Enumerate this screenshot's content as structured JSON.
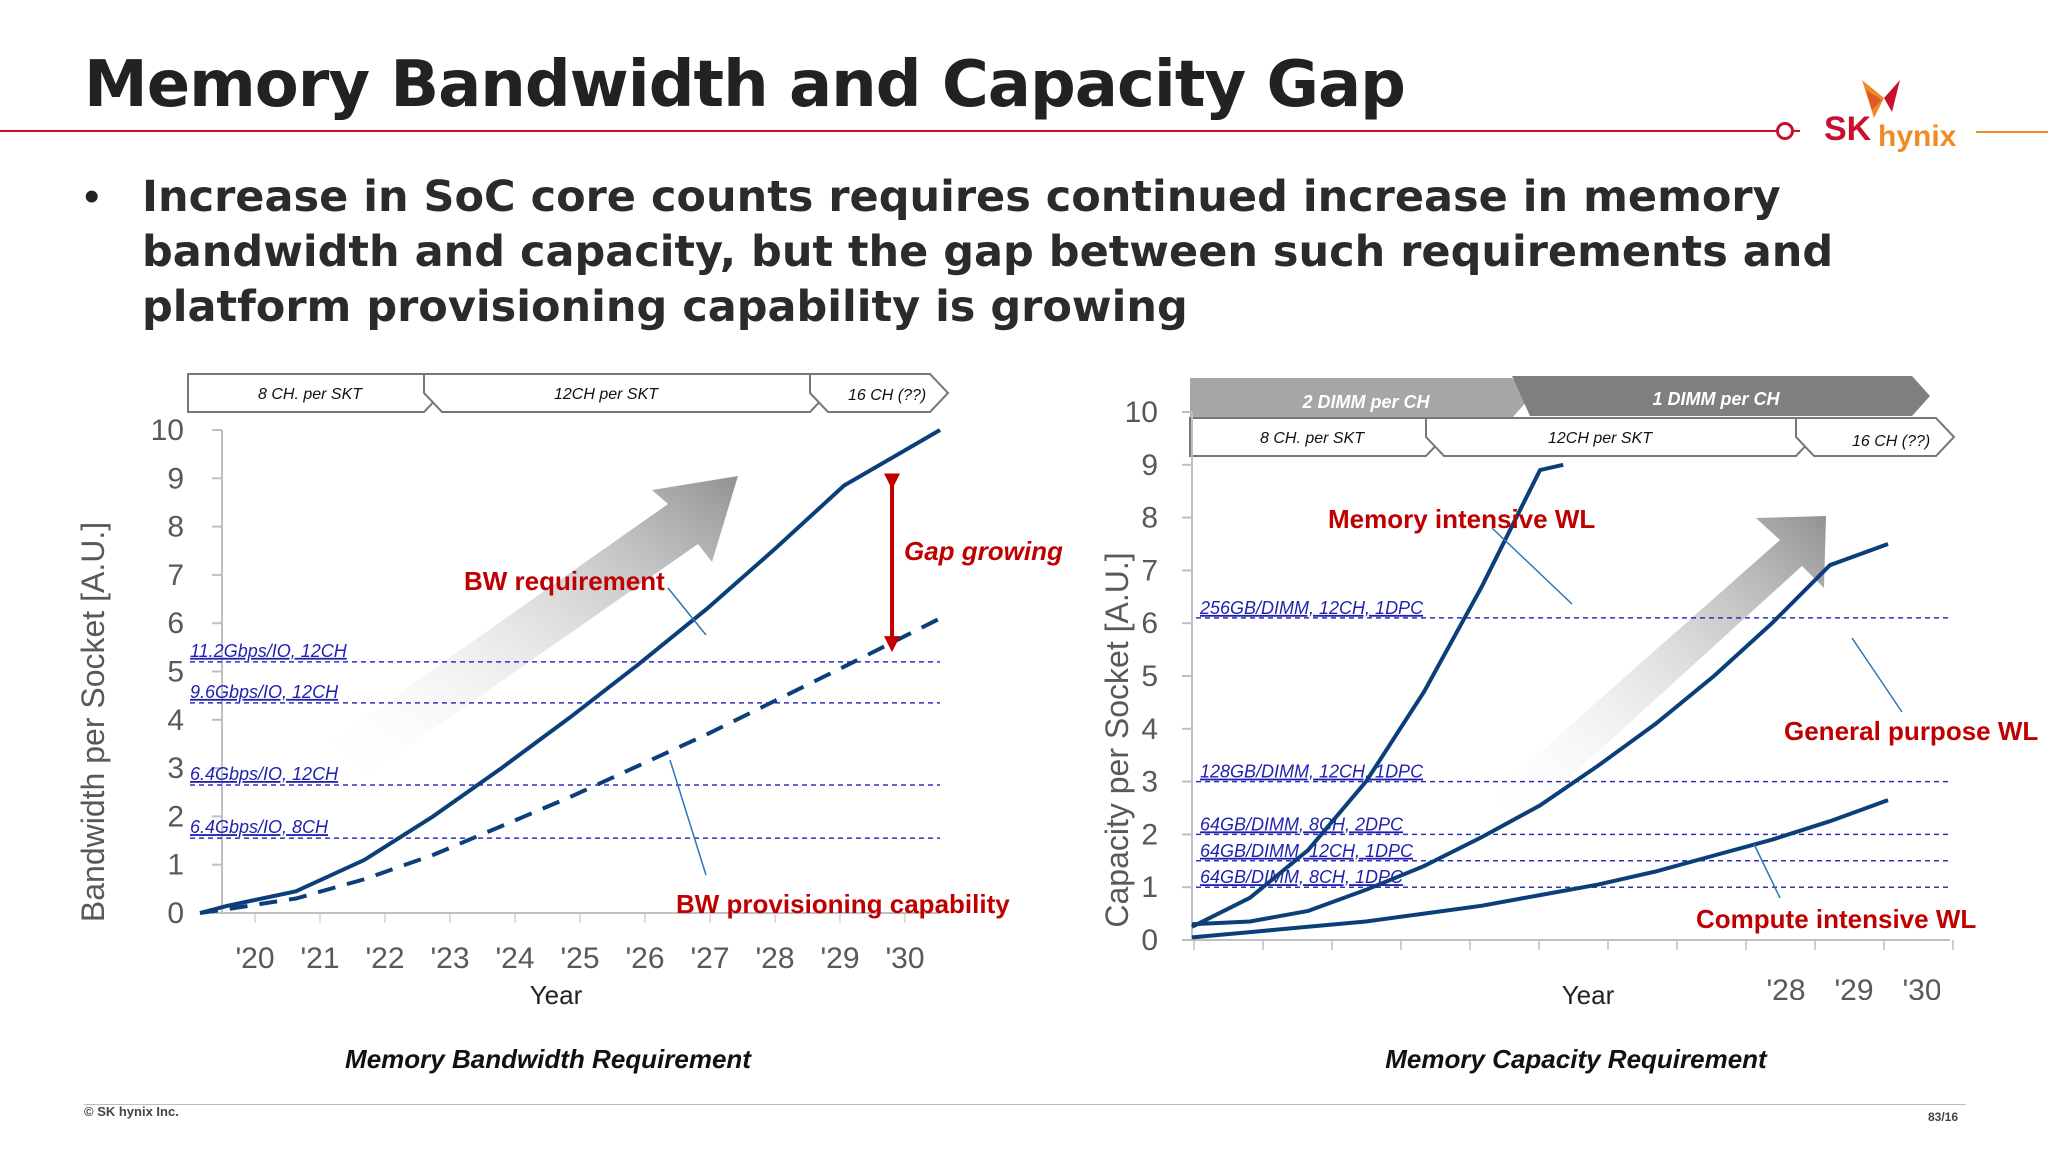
{
  "slide": {
    "title": "Memory Bandwidth and Capacity Gap",
    "bullet": "•",
    "bullet_text": "Increase in SoC core counts requires continued increase in memory bandwidth and capacity, but the gap between such requirements and platform provisioning capability is growing",
    "logo_sk": "SK",
    "logo_hynix": "hynix",
    "copyright": "© SK hynix Inc.",
    "page": "83/16"
  },
  "chart_data": [
    {
      "type": "line",
      "title": "Memory Bandwidth Requirement",
      "xlabel": "Year",
      "ylabel": "Bandwidth per Socket [A.U.]",
      "ylim": [
        0,
        10
      ],
      "ytick_labels": [
        "0",
        "1",
        "2",
        "3",
        "4",
        "5",
        "6",
        "7",
        "8",
        "9",
        "10"
      ],
      "xtick_labels": [
        "'20",
        "'21",
        "'22",
        "'23",
        "'24",
        "'25",
        "'26",
        "'27",
        "'28",
        "'29",
        "'30"
      ],
      "channel_bands": [
        {
          "label": "8 CH. per SKT"
        },
        {
          "label": "12CH per SKT"
        },
        {
          "label": "16 CH (??)"
        }
      ],
      "series": [
        {
          "name": "BW requirement",
          "style": "solid",
          "color": "#0b3f7a",
          "x": [
            2019.6,
            2020,
            2021,
            2022,
            2023,
            2024,
            2025,
            2026,
            2027,
            2028,
            2029,
            2030.4
          ],
          "y": [
            0,
            0.15,
            0.45,
            1.1,
            2.0,
            3.0,
            4.05,
            5.15,
            6.3,
            7.55,
            8.85,
            10.0
          ]
        },
        {
          "name": "BW provisioning capability",
          "style": "dashed",
          "color": "#0b3f7a",
          "x": [
            2019.6,
            2020,
            2021,
            2022,
            2023,
            2024,
            2025,
            2026,
            2027,
            2028,
            2029,
            2030.4
          ],
          "y": [
            0,
            0.08,
            0.3,
            0.7,
            1.2,
            1.8,
            2.4,
            3.05,
            3.7,
            4.4,
            5.1,
            6.1
          ]
        }
      ],
      "reference_lines": [
        {
          "label": "11.2Gbps/IO, 12CH",
          "y": 5.2
        },
        {
          "label": "9.6Gbps/IO, 12CH",
          "y": 4.35
        },
        {
          "label": "6.4Gbps/IO, 12CH",
          "y": 2.65
        },
        {
          "label": "6.4Gbps/IO, 8CH",
          "y": 1.55
        }
      ],
      "annotations": [
        {
          "label": "BW requirement",
          "color": "#c00000"
        },
        {
          "label": "BW provisioning capability",
          "color": "#c00000"
        },
        {
          "label": "Gap growing",
          "color": "#c00000"
        }
      ],
      "gap_arrow": {
        "x": 2029.7,
        "y_from": 9.1,
        "y_to": 5.4,
        "color": "#c00000"
      }
    },
    {
      "type": "line",
      "title": "Memory Capacity Requirement",
      "xlabel": "Year",
      "ylabel": "Capacity per Socket [A.U.]",
      "ylim": [
        0,
        10
      ],
      "ytick_labels": [
        "0",
        "1",
        "2",
        "3",
        "4",
        "5",
        "6",
        "7",
        "8",
        "9",
        "10"
      ],
      "xtick_labels_partial": [
        "'28",
        "'29",
        "'30"
      ],
      "dimm_bands": [
        {
          "label": "2 DIMM per CH",
          "color": "#a6a6a6"
        },
        {
          "label": "1 DIMM per CH",
          "color": "#7f7f7f"
        }
      ],
      "channel_bands": [
        {
          "label": "8 CH. per SKT"
        },
        {
          "label": "12CH per SKT"
        },
        {
          "label": "16 CH (??)"
        }
      ],
      "series": [
        {
          "name": "Memory intensive WL",
          "color": "#0b3f7a",
          "x": [
            0,
            1,
            2,
            3,
            4,
            5,
            6,
            6.4
          ],
          "y": [
            0.25,
            0.8,
            1.7,
            3.0,
            4.7,
            6.7,
            8.9,
            9.0
          ]
        },
        {
          "name": "General purpose WL",
          "color": "#0b3f7a",
          "x": [
            0,
            1,
            2,
            3,
            4,
            5,
            6,
            7,
            8,
            9,
            10,
            11,
            12
          ],
          "y": [
            0.3,
            0.35,
            0.55,
            0.95,
            1.4,
            1.95,
            2.55,
            3.3,
            4.1,
            5.0,
            6.0,
            7.1,
            7.5
          ]
        },
        {
          "name": "Compute intensive WL",
          "color": "#0b3f7a",
          "x": [
            0,
            1,
            2,
            3,
            4,
            5,
            6,
            7,
            8,
            9,
            10,
            11,
            12
          ],
          "y": [
            0.05,
            0.15,
            0.25,
            0.35,
            0.5,
            0.65,
            0.85,
            1.05,
            1.3,
            1.6,
            1.9,
            2.25,
            2.65
          ]
        }
      ],
      "reference_lines": [
        {
          "label": "256GB/DIMM, 12CH, 1DPC",
          "y": 6.1
        },
        {
          "label": "128GB/DIMM, 12CH, 1DPC",
          "y": 3.0
        },
        {
          "label": "64GB/DIMM, 8CH, 2DPC",
          "y": 2.0
        },
        {
          "label": "64GB/DIMM, 12CH, 1DPC",
          "y": 1.5
        },
        {
          "label": "64GB/DIMM, 8CH, 1DPC",
          "y": 1.0
        }
      ],
      "annotations": [
        {
          "label": "Memory intensive WL",
          "color": "#c00000"
        },
        {
          "label": "General purpose WL",
          "color": "#c00000"
        },
        {
          "label": "Compute intensive WL",
          "color": "#c00000"
        }
      ]
    }
  ]
}
